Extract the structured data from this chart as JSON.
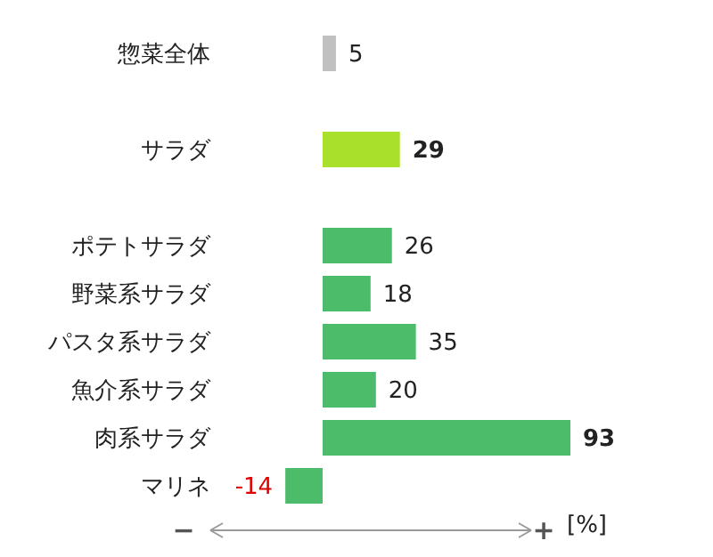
{
  "chart_data": {
    "type": "bar",
    "orientation": "horizontal",
    "categories": [
      "惣菜全体",
      null,
      "サラダ",
      null,
      "ポテトサラダ",
      "野菜系サラダ",
      "パスタ系サラダ",
      "魚介系サラダ",
      "肉系サラダ",
      "マリネ"
    ],
    "values": [
      5,
      null,
      29,
      null,
      26,
      18,
      35,
      20,
      93,
      -14
    ],
    "colors": [
      "#c0c0c0",
      null,
      "#a8e02c",
      null,
      "#4cbb6a",
      "#4cbb6a",
      "#4cbb6a",
      "#4cbb6a",
      "#4cbb6a",
      "#4cbb6a"
    ],
    "data_labels": true,
    "xlabel": "[%]",
    "annotations": [
      "−",
      "+"
    ]
  }
}
